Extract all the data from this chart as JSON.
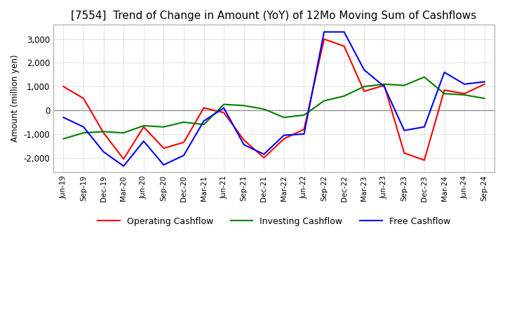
{
  "title": "[7554]  Trend of Change in Amount (YoY) of 12Mo Moving Sum of Cashflows",
  "ylabel": "Amount (million yen)",
  "xlabels": [
    "Jun-19",
    "Sep-19",
    "Dec-19",
    "Mar-20",
    "Jun-20",
    "Sep-20",
    "Dec-20",
    "Mar-21",
    "Jun-21",
    "Sep-21",
    "Dec-21",
    "Mar-22",
    "Jun-22",
    "Sep-22",
    "Dec-22",
    "Mar-23",
    "Jun-23",
    "Sep-23",
    "Dec-23",
    "Mar-24",
    "Jun-24",
    "Sep-24"
  ],
  "operating": [
    1000,
    500,
    -950,
    -2050,
    -700,
    -1600,
    -1350,
    100,
    -100,
    -1250,
    -2000,
    -1200,
    -800,
    3000,
    2700,
    800,
    1050,
    -1800,
    -2100,
    850,
    700,
    1100
  ],
  "investing": [
    -1200,
    -950,
    -900,
    -950,
    -650,
    -700,
    -500,
    -600,
    250,
    200,
    50,
    -300,
    -200,
    400,
    600,
    1000,
    1100,
    1050,
    1400,
    700,
    650,
    500
  ],
  "free": [
    -300,
    -700,
    -1750,
    -2350,
    -1300,
    -2300,
    -1900,
    -450,
    100,
    -1450,
    -1850,
    -1050,
    -1000,
    3300,
    3300,
    1700,
    1000,
    -850,
    -700,
    1600,
    1100,
    1200
  ],
  "operating_color": "#ff0000",
  "investing_color": "#008000",
  "free_color": "#0000ff",
  "ylim": [
    -2600,
    3600
  ],
  "yticks": [
    -2000,
    -1000,
    0,
    1000,
    2000,
    3000
  ],
  "background_color": "#ffffff",
  "grid_color": "#aaaaaa",
  "spine_color": "#aaaaaa",
  "title_fontsize": 11,
  "zero_line_color": "#888888"
}
